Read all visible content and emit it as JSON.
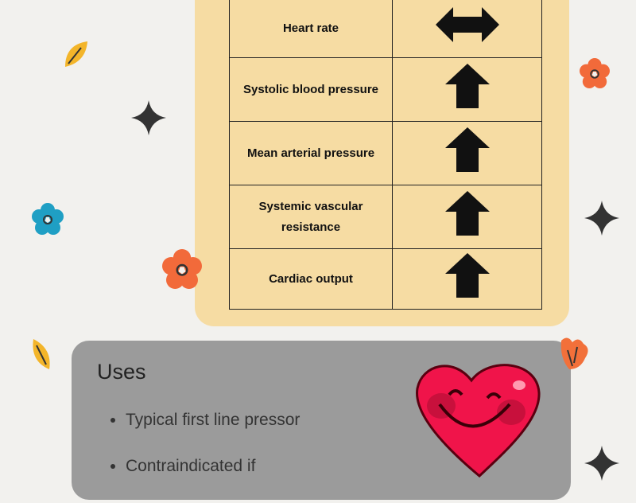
{
  "table": {
    "rows": [
      {
        "parameter": "Heart rate",
        "effect": "no-change-icon"
      },
      {
        "parameter": "Systolic blood pressure",
        "effect": "increase-icon"
      },
      {
        "parameter": "Mean arterial pressure",
        "effect": "increase-icon"
      },
      {
        "parameter": "Systemic vascular resistance",
        "effect": "increase-icon"
      },
      {
        "parameter": "Cardiac output",
        "effect": "increase-icon"
      }
    ]
  },
  "uses": {
    "title": "Uses",
    "items": [
      "Typical first line pressor",
      "Contraindicated if"
    ]
  },
  "colors": {
    "panel": "#f6dca3",
    "uses_panel": "#9b9b9b",
    "heart": "#f0144a"
  }
}
